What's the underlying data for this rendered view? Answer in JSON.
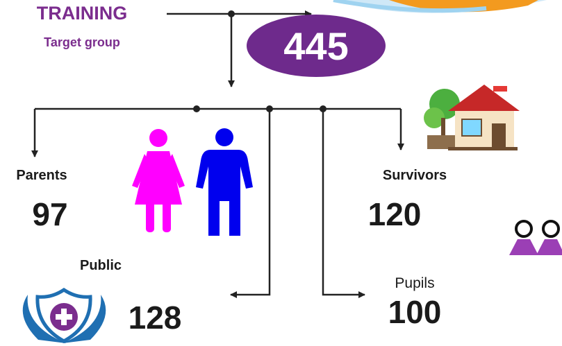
{
  "title": "TRAINING",
  "subtitle": "Target group",
  "total": 445,
  "groups": [
    {
      "label": "Parents",
      "value": 97
    },
    {
      "label": "Survivors",
      "value": 120
    },
    {
      "label": "Public",
      "value": 128
    },
    {
      "label": "Pupils",
      "value": 100
    }
  ]
}
